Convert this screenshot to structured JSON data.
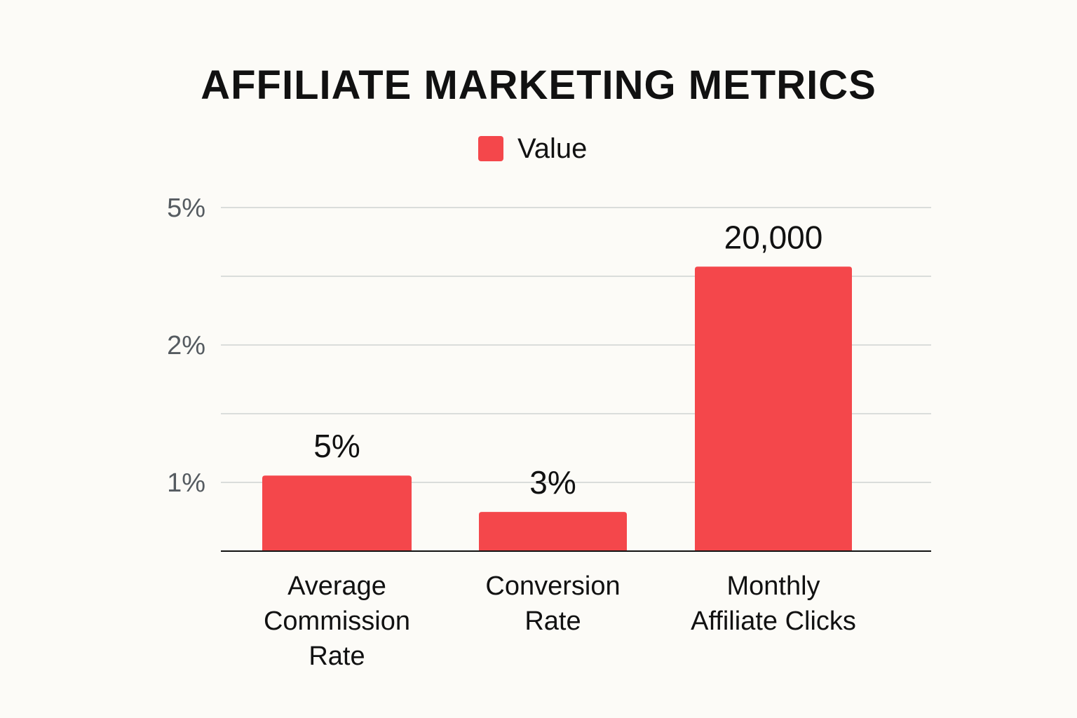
{
  "chart_data": {
    "type": "bar",
    "title": "AFFILIATE MARKETING METRICS",
    "xlabel": "",
    "ylabel": "",
    "legend": {
      "position": "top-center"
    },
    "grid": true,
    "y_tick_labels": [
      "1%",
      "2%",
      "5%"
    ],
    "categories": [
      [
        "Average",
        "Commission",
        "Rate"
      ],
      [
        "Conversion",
        "Rate"
      ],
      [
        "Monthly",
        "Affiliate Clicks"
      ]
    ],
    "series": [
      {
        "name": "Value",
        "color": "#f4474b",
        "values": [
          5,
          3,
          20000
        ],
        "data_labels": [
          "5%",
          "3%",
          "20,000"
        ],
        "displayed_level": [
          1.1,
          0.57,
          4.14
        ]
      }
    ],
    "display_ylim": [
      0,
      5
    ]
  }
}
